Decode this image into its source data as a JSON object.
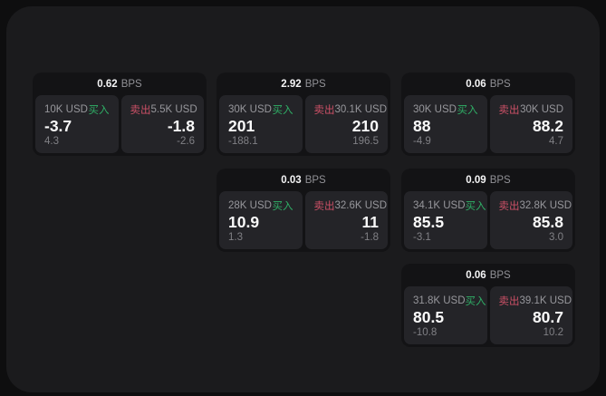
{
  "labels": {
    "bps_unit": "BPS",
    "buy": "买入",
    "sell": "卖出"
  },
  "colors": {
    "outer_background": "#0e0e0f",
    "panel_background": "#1b1b1d",
    "card_background": "#131315",
    "pane_background": "#242428",
    "text_primary": "#fafafa",
    "text_secondary": "#97979c",
    "buy_green": "#2fae66",
    "sell_red": "#cb5066"
  },
  "cards": [
    {
      "bps": "0.62",
      "buy": {
        "amount": "10K USD",
        "value": "-3.7",
        "delta": "4.3"
      },
      "sell": {
        "amount": "5.5K USD",
        "value": "-1.8",
        "delta": "-2.6"
      }
    },
    {
      "bps": "2.92",
      "buy": {
        "amount": "30K USD",
        "value": "201",
        "delta": "-188.1"
      },
      "sell": {
        "amount": "30.1K USD",
        "value": "210",
        "delta": "196.5"
      }
    },
    {
      "bps": "0.06",
      "buy": {
        "amount": "30K USD",
        "value": "88",
        "delta": "-4.9"
      },
      "sell": {
        "amount": "30K USD",
        "value": "88.2",
        "delta": "4.7"
      }
    },
    {
      "bps": "0.03",
      "buy": {
        "amount": "28K USD",
        "value": "10.9",
        "delta": "1.3"
      },
      "sell": {
        "amount": "32.6K USD",
        "value": "11",
        "delta": "-1.8"
      }
    },
    {
      "bps": "0.09",
      "buy": {
        "amount": "34.1K USD",
        "value": "85.5",
        "delta": "-3.1"
      },
      "sell": {
        "amount": "32.8K USD",
        "value": "85.8",
        "delta": "3.0"
      }
    },
    {
      "bps": "0.06",
      "buy": {
        "amount": "31.8K USD",
        "value": "80.5",
        "delta": "-10.8"
      },
      "sell": {
        "amount": "39.1K USD",
        "value": "80.7",
        "delta": "10.2"
      }
    }
  ]
}
